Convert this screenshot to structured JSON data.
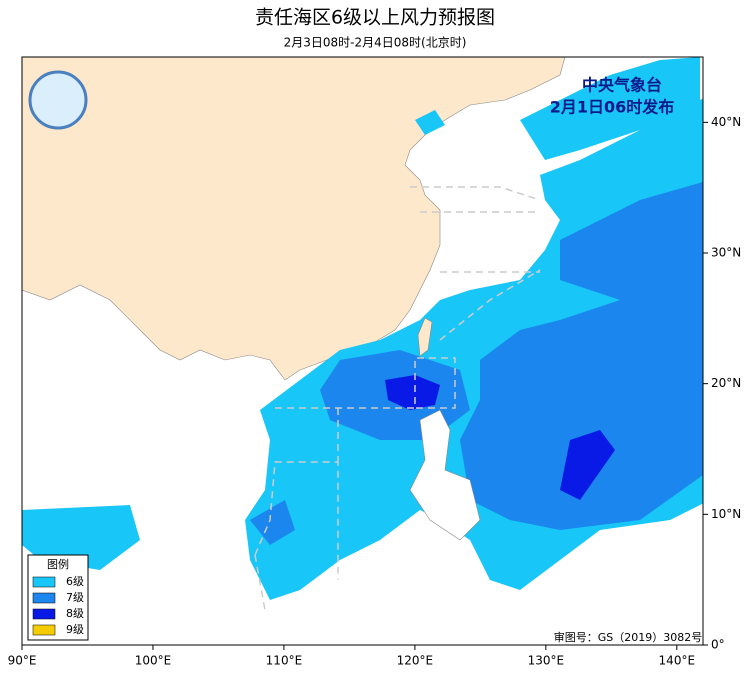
{
  "map": {
    "title": "责任海区6级以上风力预报图",
    "subtitle": "2月3日08时-2月4日08时(北京时)",
    "agency": "中央气象台",
    "issued": "2月1日06时发布",
    "approval": "审图号：GS（2019）3082号",
    "legend": {
      "title": "图例",
      "items": [
        {
          "label": "6级",
          "color": "#19c6f8"
        },
        {
          "label": "7级",
          "color": "#1a86ee"
        },
        {
          "label": "8级",
          "color": "#0a1ae6"
        },
        {
          "label": "9级",
          "color": "#f5cc00"
        }
      ]
    },
    "xlim": [
      90,
      142
    ],
    "ylim": [
      0,
      45
    ],
    "xticks": [
      {
        "value": 90,
        "label": "90°E"
      },
      {
        "value": 100,
        "label": "100°E"
      },
      {
        "value": 110,
        "label": "110°E"
      },
      {
        "value": 120,
        "label": "120°E"
      },
      {
        "value": 130,
        "label": "130°E"
      },
      {
        "value": 140,
        "label": "140°E"
      }
    ],
    "yticks": [
      {
        "value": 0,
        "label": "0°"
      },
      {
        "value": 10,
        "label": "10°N"
      },
      {
        "value": 20,
        "label": "20°N"
      },
      {
        "value": 30,
        "label": "30°N"
      },
      {
        "value": 40,
        "label": "40°N"
      }
    ]
  }
}
